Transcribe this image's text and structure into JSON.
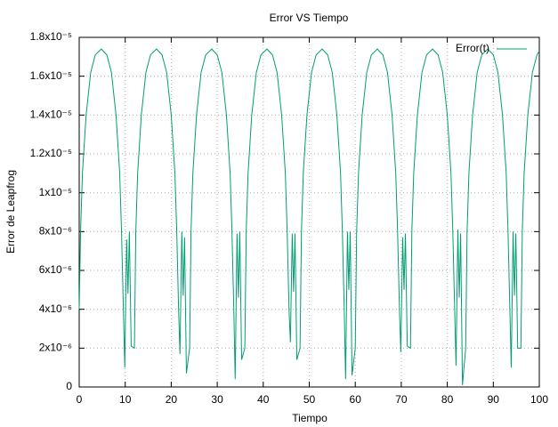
{
  "chart_data": {
    "type": "line",
    "title": "Error VS Tiempo",
    "x_label": "Tiempo",
    "y_label": "Error de Leapfrog",
    "x": [
      0,
      0.3,
      0.7,
      1.5,
      2.5,
      3.5,
      4.8,
      6,
      7,
      8,
      8.8,
      9.2,
      9.6,
      9.9,
      10.3,
      10.6,
      10.9,
      11.3,
      12,
      12.3,
      12.7,
      13.5,
      14.5,
      15.5,
      16.8,
      18,
      19,
      20,
      20.8,
      21.2,
      21.6,
      21.9,
      22.3,
      22.6,
      22.9,
      23.3,
      24,
      24.3,
      24.7,
      25.5,
      26.5,
      27.5,
      28.8,
      30,
      31,
      32,
      32.8,
      33.2,
      33.6,
      33.9,
      34.3,
      34.6,
      34.9,
      35.3,
      36,
      36.3,
      36.7,
      37.5,
      38.5,
      39.5,
      40.8,
      42,
      43,
      44,
      44.8,
      45.2,
      45.6,
      45.9,
      46.3,
      46.6,
      46.9,
      47.3,
      48,
      48.3,
      48.7,
      49.5,
      50.5,
      51.5,
      52.8,
      54,
      55,
      56,
      56.8,
      57.2,
      57.6,
      57.9,
      58.3,
      58.6,
      58.9,
      59.3,
      60,
      60.3,
      60.7,
      61.5,
      62.5,
      63.5,
      64.8,
      66,
      67,
      68,
      68.8,
      69.2,
      69.6,
      69.9,
      70.3,
      70.6,
      70.9,
      71.3,
      72,
      72.3,
      72.7,
      73.5,
      74.5,
      75.5,
      76.8,
      78,
      79,
      80,
      80.8,
      81.2,
      81.6,
      81.9,
      82.3,
      82.6,
      82.9,
      83.3,
      84,
      84.3,
      84.7,
      85.5,
      86.5,
      87.5,
      88.8,
      90,
      91,
      92,
      92.8,
      93.2,
      93.6,
      93.9,
      94.3,
      94.6,
      94.9,
      95.3,
      96,
      96.3,
      96.7,
      97.5,
      98.5,
      99.5,
      100
    ],
    "series": [
      {
        "name": "Error(t)",
        "color": "#009e73",
        "values": [
          4e-06,
          8e-06,
          1.1e-05,
          1.4e-05,
          1.62e-05,
          1.71e-05,
          1.74e-05,
          1.71e-05,
          1.62e-05,
          1.4e-05,
          1.1e-05,
          8e-06,
          4e-06,
          1e-06,
          7.6e-06,
          4.8e-06,
          8e-06,
          2.1e-06,
          2e-06,
          8e-06,
          1.1e-05,
          1.4e-05,
          1.62e-05,
          1.71e-05,
          1.74e-05,
          1.71e-05,
          1.62e-05,
          1.4e-05,
          1.1e-05,
          8e-06,
          4e-06,
          1.7e-06,
          8e-06,
          4.7e-06,
          7.7e-06,
          7e-07,
          2e-06,
          8e-06,
          1.1e-05,
          1.4e-05,
          1.62e-05,
          1.71e-05,
          1.74e-05,
          1.71e-05,
          1.62e-05,
          1.4e-05,
          1.1e-05,
          8e-06,
          4e-06,
          4e-07,
          7.9e-06,
          4.6e-06,
          8e-06,
          1.4e-06,
          2e-06,
          8e-06,
          1.1e-05,
          1.4e-05,
          1.62e-05,
          1.71e-05,
          1.74e-05,
          1.71e-05,
          1.62e-05,
          1.4e-05,
          1.1e-05,
          8e-06,
          4e-06,
          2.3e-06,
          7.9e-06,
          4.9e-06,
          7.9e-06,
          1.4e-06,
          2e-06,
          8e-06,
          1.1e-05,
          1.4e-05,
          1.62e-05,
          1.71e-05,
          1.74e-05,
          1.71e-05,
          1.62e-05,
          1.4e-05,
          1.1e-05,
          8e-06,
          4e-06,
          4e-07,
          8e-06,
          5e-06,
          8e-06,
          6e-07,
          2e-06,
          8e-06,
          1.1e-05,
          1.4e-05,
          1.62e-05,
          1.71e-05,
          1.74e-05,
          1.71e-05,
          1.62e-05,
          1.4e-05,
          1.1e-05,
          8e-06,
          4e-06,
          1.8e-06,
          7.7e-06,
          5e-06,
          7.9e-06,
          2.1e-06,
          2e-06,
          8e-06,
          1.1e-05,
          1.4e-05,
          1.62e-05,
          1.71e-05,
          1.74e-05,
          1.71e-05,
          1.62e-05,
          1.4e-05,
          1.1e-05,
          8e-06,
          4e-06,
          1.1e-06,
          8.1e-06,
          4.6e-06,
          7.9e-06,
          1e-07,
          2e-06,
          8e-06,
          1.1e-05,
          1.4e-05,
          1.62e-05,
          1.71e-05,
          1.74e-05,
          1.71e-05,
          1.62e-05,
          1.4e-05,
          1.1e-05,
          8e-06,
          4e-06,
          1e-06,
          8e-06,
          4.7e-06,
          7.9e-06,
          2e-06,
          2e-06,
          8e-06,
          1.1e-05,
          1.4e-05,
          1.62e-05,
          1.71e-05,
          1.73e-05
        ]
      }
    ],
    "xlim": [
      0,
      100
    ],
    "xticks": [
      0,
      10,
      20,
      30,
      40,
      50,
      60,
      70,
      80,
      90,
      100
    ],
    "ylim": [
      0,
      1.8e-05
    ],
    "yticks": [
      0,
      {
        "value": 2e-06,
        "label": "2x10⁻⁶"
      },
      {
        "value": 4e-06,
        "label": "4x10⁻⁶"
      },
      {
        "value": 6e-06,
        "label": "6x10⁻⁶"
      },
      {
        "value": 8e-06,
        "label": "8x10⁻⁶"
      },
      {
        "value": 1e-05,
        "label": "1x10⁻⁵"
      },
      {
        "value": 1.2e-05,
        "label": "1.2x10⁻⁵"
      },
      {
        "value": 1.4e-05,
        "label": "1.4x10⁻⁵"
      },
      {
        "value": 1.6e-05,
        "label": "1.6x10⁻⁵"
      },
      {
        "value": 1.8e-05,
        "label": "1.8x10⁻⁵"
      }
    ],
    "grid": true,
    "legend": "top-right"
  }
}
